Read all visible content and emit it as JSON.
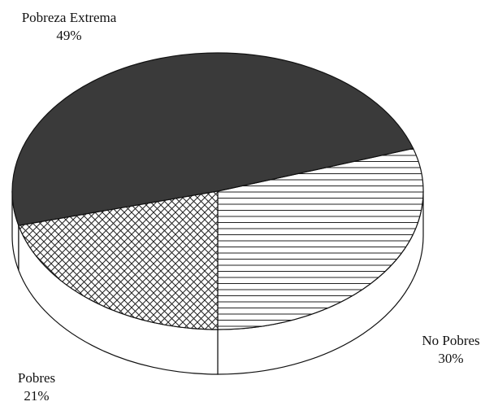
{
  "chart_data": {
    "type": "pie",
    "categories": [
      "No Pobres",
      "Pobreza Extrema",
      "Pobres"
    ],
    "values": [
      30,
      49,
      21
    ],
    "value_labels": [
      "30%",
      "49%",
      "21%"
    ],
    "colors": [
      "#ffffff",
      "#3a3a3a",
      "#ffffff"
    ],
    "patterns": [
      "horizontal",
      "solid",
      "crosshatch"
    ]
  }
}
